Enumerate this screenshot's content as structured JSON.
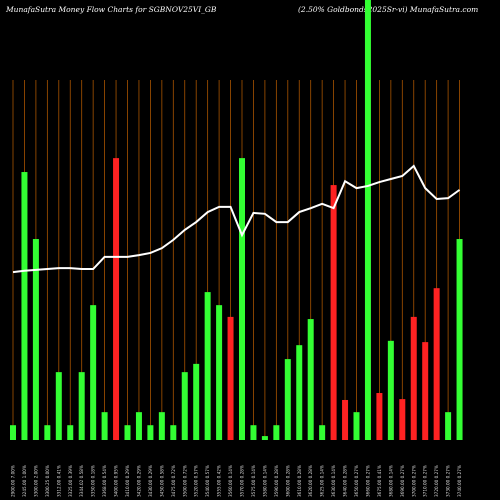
{
  "chart_data": {
    "type": "bar",
    "title": "MunafaSutra  Money Flow  Charts for SGBNOV25VI_GB",
    "subtitle": "(2.50% Goldbonds2025Sr-vi) MunafaSutra.com",
    "categories": [
      "2900.00 7.00%",
      "3245.00 1.00%",
      "3300.00 2.00%",
      "3300.25 0.00%",
      "3312.00 0.41%",
      "3325.00 0.39%",
      "3344.02 0.58%",
      "3350.00 0.18%",
      "3368.00 0.54%",
      "3400.00 0.95%",
      "3410.00 0.29%",
      "3420.00 0.29%",
      "3430.00 0.29%",
      "3450.00 0.58%",
      "3475.00 0.72%",
      "3500.00 0.72%",
      "3520.00 0.57%",
      "3540.00 0.57%",
      "3555.00 0.42%",
      "3560.00 0.14%",
      "3570.00 0.28%",
      "3575.00 0.14%",
      "3580.00 0.14%",
      "3590.00 0.28%",
      "3600.00 0.28%",
      "3610.00 0.28%",
      "3620.00 0.28%",
      "3625.00 0.14%",
      "3630.00 0.14%",
      "3640.00 0.28%",
      "3650.00 0.27%",
      "3660.00 0.27%",
      "3675.00 0.41%",
      "3680.00 0.14%",
      "3690.00 0.27%",
      "3700.00 0.27%",
      "3710.00 0.27%",
      "3720.00 0.27%",
      "3730.00 0.27%",
      "3740.00 0.27%"
    ],
    "ylim": [
      0,
      100
    ],
    "y2lim": [
      0,
      100
    ],
    "series": [
      {
        "name": "Money Flow",
        "colors": [
          "#33ff33",
          "#33ff33",
          "#33ff33",
          "#33ff33",
          "#33ff33",
          "#33ff33",
          "#33ff33",
          "#33ff33",
          "#33ff33",
          "#ff2222",
          "#33ff33",
          "#33ff33",
          "#33ff33",
          "#33ff33",
          "#33ff33",
          "#33ff33",
          "#33ff33",
          "#33ff33",
          "#33ff33",
          "#ff2222",
          "#33ff33",
          "#33ff33",
          "#33ff33",
          "#33ff33",
          "#33ff33",
          "#33ff33",
          "#33ff33",
          "#33ff33",
          "#ff2222",
          "#ff2222",
          "#33ff33",
          "#33ff33",
          "#ff2222",
          "#33ff33",
          "#ff2222",
          "#ff2222",
          "#ff2222",
          "#ff2222",
          "#33ff33",
          "#33ff33"
        ],
        "values": [
          3.4,
          61.6,
          46.2,
          3.4,
          15.6,
          3.4,
          15.6,
          31,
          6.4,
          64.8,
          3.4,
          6.4,
          3.4,
          6.4,
          3.4,
          15.6,
          17.5,
          34,
          31,
          28.3,
          64.8,
          3.4,
          0.9,
          3.4,
          18.6,
          21.8,
          27.8,
          3.4,
          58.6,
          9.2,
          6.4,
          102,
          10.8,
          22.8,
          9.4,
          28.3,
          22.5,
          34.9,
          6.4,
          46.2
        ]
      },
      {
        "name": "Price",
        "color": "#ffffff",
        "axis": "y2",
        "values": [
          38.6,
          38.9,
          39.1,
          39.3,
          39.5,
          39.5,
          39.3,
          39.3,
          42.1,
          42.1,
          42.1,
          42.5,
          43.0,
          44.1,
          46.0,
          48.3,
          50.1,
          52.4,
          53.6,
          53.6,
          47.1,
          52.2,
          52.0,
          50.1,
          50.1,
          52.4,
          53.3,
          54.3,
          53.3,
          59.5,
          57.9,
          58.4,
          59.3,
          60.0,
          60.7,
          63.0,
          57.9,
          55.4,
          55.6,
          57.5
        ]
      }
    ]
  }
}
